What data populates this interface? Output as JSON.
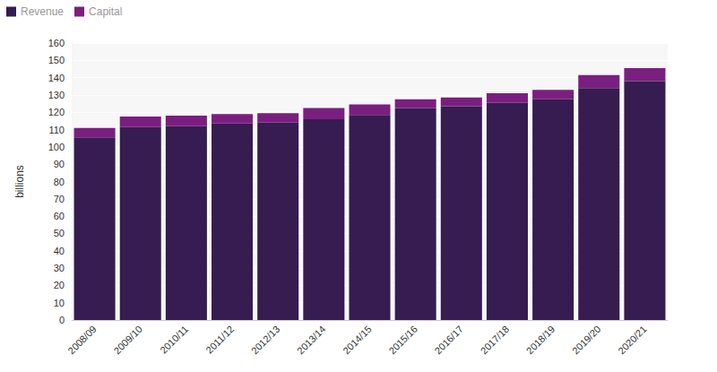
{
  "chart_data": {
    "type": "bar",
    "stacked": true,
    "grid": true,
    "legend": "top-left",
    "y_label": "billions",
    "categories": [
      "2008/09",
      "2009/10",
      "2010/11",
      "2011/12",
      "2012/13",
      "2013/14",
      "2014/15",
      "2015/16",
      "2016/17",
      "2017/18",
      "2018/19",
      "2019/20",
      "2020/21"
    ],
    "series": [
      {
        "name": "Revenue",
        "color": "#361c50",
        "values": [
          105.5,
          111.5,
          112,
          113.5,
          114,
          116,
          118.5,
          122.5,
          123.5,
          125.5,
          127.5,
          134,
          138
        ]
      },
      {
        "name": "Capital",
        "color": "#7a1f7f",
        "values": [
          5.5,
          6,
          6,
          5.5,
          5.5,
          6.5,
          6,
          5,
          5,
          5.5,
          5.5,
          7.5,
          7.5
        ]
      }
    ],
    "ylim": [
      0,
      160
    ],
    "yticks": [
      0,
      10,
      20,
      30,
      40,
      50,
      60,
      70,
      80,
      90,
      100,
      110,
      120,
      130,
      140,
      150,
      160
    ]
  }
}
